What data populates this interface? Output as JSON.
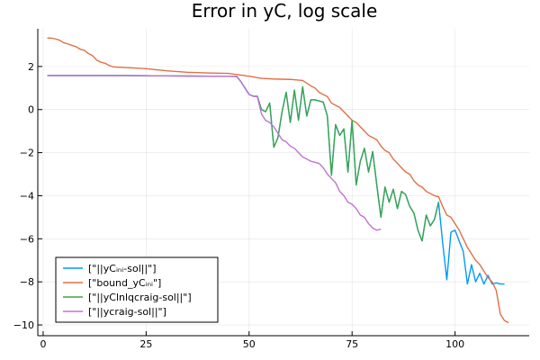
{
  "chart_data": {
    "type": "line",
    "title": "Error in yC, log scale",
    "xlabel": "",
    "ylabel": "",
    "xlim": [
      -1.3,
      118
    ],
    "ylim": [
      -10.5,
      3.75
    ],
    "x_ticks": [
      0,
      25,
      50,
      75,
      100
    ],
    "y_ticks": [
      2,
      0,
      -2,
      -4,
      -6,
      -8,
      -10
    ],
    "x_tick_labels": [
      "0",
      "25",
      "50",
      "75",
      "100"
    ],
    "y_tick_labels": [
      "2",
      "0",
      "−2",
      "−4",
      "−6",
      "−8",
      "−10"
    ],
    "grid": true,
    "legend_position": "bottom-left",
    "series": [
      {
        "name": "[\"||yCᵢₙᵢ-sol||\"]",
        "color": "#009AFA",
        "points": [
          [
            1,
            1.58
          ],
          [
            20,
            1.58
          ],
          [
            40,
            1.55
          ],
          [
            47,
            1.54
          ],
          [
            48,
            1.3
          ],
          [
            50,
            0.7
          ],
          [
            51,
            0.62
          ],
          [
            52,
            0.62
          ],
          [
            53,
            0.0
          ],
          [
            54,
            -0.1
          ],
          [
            55,
            0.3
          ],
          [
            56,
            -1.75
          ],
          [
            57,
            -1.3
          ],
          [
            58,
            -0.1
          ],
          [
            59,
            0.8
          ],
          [
            60,
            -0.6
          ],
          [
            61,
            0.9
          ],
          [
            62,
            -0.5
          ],
          [
            63,
            1.05
          ],
          [
            64,
            -0.3
          ],
          [
            65,
            0.45
          ],
          [
            66,
            0.45
          ],
          [
            67,
            0.4
          ],
          [
            68,
            0.35
          ],
          [
            69,
            -0.3
          ],
          [
            70,
            -3.05
          ],
          [
            71,
            -0.7
          ],
          [
            72,
            -1.2
          ],
          [
            73,
            -0.9
          ],
          [
            74,
            -2.9
          ],
          [
            75,
            -0.5
          ],
          [
            76,
            -3.5
          ],
          [
            77,
            -2.4
          ],
          [
            78,
            -1.8
          ],
          [
            79,
            -2.9
          ],
          [
            80,
            -1.95
          ],
          [
            81,
            -3.5
          ],
          [
            82,
            -5.0
          ],
          [
            83,
            -3.6
          ],
          [
            84,
            -4.3
          ],
          [
            85,
            -3.7
          ],
          [
            86,
            -4.6
          ],
          [
            87,
            -3.8
          ],
          [
            88,
            -3.95
          ],
          [
            89,
            -4.5
          ],
          [
            90,
            -4.8
          ],
          [
            91,
            -5.6
          ],
          [
            92,
            -6.1
          ],
          [
            93,
            -4.9
          ],
          [
            94,
            -5.4
          ],
          [
            95,
            -5.1
          ],
          [
            96,
            -4.3
          ],
          [
            97,
            -6.2
          ],
          [
            98,
            -7.9
          ],
          [
            99,
            -5.7
          ],
          [
            100,
            -5.6
          ],
          [
            101,
            -6.1
          ],
          [
            102,
            -6.6
          ],
          [
            103,
            -8.1
          ],
          [
            104,
            -7.2
          ],
          [
            105,
            -8.0
          ],
          [
            106,
            -7.6
          ],
          [
            107,
            -8.1
          ],
          [
            108,
            -7.7
          ],
          [
            109,
            -8.1
          ],
          [
            110,
            -8.05
          ],
          [
            111,
            -8.1
          ],
          [
            112,
            -8.1
          ]
        ]
      },
      {
        "name": "[\"bound_yCᵢₙᵢ\"]",
        "color": "#E26F46",
        "points": [
          [
            1,
            3.32
          ],
          [
            2,
            3.32
          ],
          [
            3,
            3.28
          ],
          [
            4,
            3.22
          ],
          [
            5,
            3.1
          ],
          [
            6,
            3.05
          ],
          [
            7,
            2.98
          ],
          [
            8,
            2.92
          ],
          [
            9,
            2.8
          ],
          [
            10,
            2.75
          ],
          [
            11,
            2.6
          ],
          [
            12,
            2.5
          ],
          [
            13,
            2.3
          ],
          [
            14,
            2.2
          ],
          [
            15,
            2.15
          ],
          [
            16,
            2.05
          ],
          [
            17,
            1.98
          ],
          [
            20,
            1.95
          ],
          [
            25,
            1.9
          ],
          [
            30,
            1.8
          ],
          [
            35,
            1.73
          ],
          [
            40,
            1.7
          ],
          [
            45,
            1.68
          ],
          [
            48,
            1.6
          ],
          [
            50,
            1.55
          ],
          [
            53,
            1.45
          ],
          [
            56,
            1.42
          ],
          [
            60,
            1.4
          ],
          [
            63,
            1.35
          ],
          [
            65,
            1.1
          ],
          [
            66,
            1.0
          ],
          [
            67,
            0.8
          ],
          [
            68,
            0.7
          ],
          [
            69,
            0.6
          ],
          [
            70,
            0.3
          ],
          [
            71,
            0.2
          ],
          [
            72,
            0.1
          ],
          [
            73,
            -0.1
          ],
          [
            74,
            -0.3
          ],
          [
            75,
            -0.5
          ],
          [
            76,
            -0.6
          ],
          [
            77,
            -0.8
          ],
          [
            78,
            -1.0
          ],
          [
            79,
            -1.2
          ],
          [
            80,
            -1.3
          ],
          [
            81,
            -1.4
          ],
          [
            82,
            -1.7
          ],
          [
            83,
            -1.9
          ],
          [
            84,
            -2.0
          ],
          [
            85,
            -2.3
          ],
          [
            86,
            -2.5
          ],
          [
            87,
            -2.7
          ],
          [
            88,
            -2.9
          ],
          [
            89,
            -3.0
          ],
          [
            90,
            -3.3
          ],
          [
            91,
            -3.5
          ],
          [
            92,
            -3.6
          ],
          [
            93,
            -3.8
          ],
          [
            94,
            -3.9
          ],
          [
            95,
            -4.0
          ],
          [
            96,
            -4.05
          ],
          [
            97,
            -4.5
          ],
          [
            98,
            -4.9
          ],
          [
            99,
            -5.0
          ],
          [
            100,
            -5.3
          ],
          [
            101,
            -5.6
          ],
          [
            102,
            -6.0
          ],
          [
            103,
            -6.4
          ],
          [
            104,
            -6.7
          ],
          [
            105,
            -7.0
          ],
          [
            106,
            -7.2
          ],
          [
            107,
            -7.5
          ],
          [
            108,
            -7.8
          ],
          [
            109,
            -8.0
          ],
          [
            110,
            -8.4
          ],
          [
            111,
            -9.5
          ],
          [
            112,
            -9.8
          ],
          [
            113,
            -9.9
          ]
        ]
      },
      {
        "name": "[\"||yClnlqcraig-sol||\"]",
        "color": "#3EA44E",
        "points": [
          [
            1,
            1.58
          ],
          [
            20,
            1.58
          ],
          [
            40,
            1.55
          ],
          [
            47,
            1.54
          ],
          [
            48,
            1.3
          ],
          [
            50,
            0.7
          ],
          [
            51,
            0.62
          ],
          [
            52,
            0.62
          ],
          [
            53,
            0.0
          ],
          [
            54,
            -0.1
          ],
          [
            55,
            0.3
          ],
          [
            56,
            -1.75
          ],
          [
            57,
            -1.3
          ],
          [
            58,
            -0.1
          ],
          [
            59,
            0.8
          ],
          [
            60,
            -0.6
          ],
          [
            61,
            0.9
          ],
          [
            62,
            -0.5
          ],
          [
            63,
            1.05
          ],
          [
            64,
            -0.3
          ],
          [
            65,
            0.45
          ],
          [
            66,
            0.45
          ],
          [
            67,
            0.4
          ],
          [
            68,
            0.35
          ],
          [
            69,
            -0.3
          ],
          [
            70,
            -3.05
          ],
          [
            71,
            -0.7
          ],
          [
            72,
            -1.2
          ],
          [
            73,
            -0.9
          ],
          [
            74,
            -2.9
          ],
          [
            75,
            -0.5
          ],
          [
            76,
            -3.5
          ],
          [
            77,
            -2.4
          ],
          [
            78,
            -1.8
          ],
          [
            79,
            -2.9
          ],
          [
            80,
            -1.95
          ],
          [
            81,
            -3.5
          ],
          [
            82,
            -5.0
          ],
          [
            83,
            -3.6
          ],
          [
            84,
            -4.3
          ],
          [
            85,
            -3.7
          ],
          [
            86,
            -4.6
          ],
          [
            87,
            -3.8
          ],
          [
            88,
            -3.95
          ],
          [
            89,
            -4.5
          ],
          [
            90,
            -4.8
          ],
          [
            91,
            -5.6
          ],
          [
            92,
            -6.1
          ],
          [
            93,
            -4.9
          ],
          [
            94,
            -5.4
          ],
          [
            95,
            -5.1
          ],
          [
            96,
            -4.3
          ]
        ]
      },
      {
        "name": "[\"||ycraig-sol||\"]",
        "color": "#C271D2",
        "points": [
          [
            1,
            1.58
          ],
          [
            20,
            1.58
          ],
          [
            40,
            1.55
          ],
          [
            47,
            1.54
          ],
          [
            48,
            1.3
          ],
          [
            50,
            0.7
          ],
          [
            51,
            0.62
          ],
          [
            52,
            0.6
          ],
          [
            53,
            -0.2
          ],
          [
            54,
            -0.5
          ],
          [
            55,
            -0.6
          ],
          [
            56,
            -0.8
          ],
          [
            57,
            -1.1
          ],
          [
            58,
            -1.4
          ],
          [
            59,
            -1.5
          ],
          [
            60,
            -1.7
          ],
          [
            61,
            -1.8
          ],
          [
            62,
            -2.0
          ],
          [
            63,
            -2.2
          ],
          [
            64,
            -2.3
          ],
          [
            65,
            -2.4
          ],
          [
            66,
            -2.45
          ],
          [
            67,
            -2.5
          ],
          [
            68,
            -2.7
          ],
          [
            69,
            -3.0
          ],
          [
            70,
            -3.2
          ],
          [
            71,
            -3.4
          ],
          [
            72,
            -3.8
          ],
          [
            73,
            -4.0
          ],
          [
            74,
            -4.3
          ],
          [
            75,
            -4.4
          ],
          [
            76,
            -4.6
          ],
          [
            77,
            -4.9
          ],
          [
            78,
            -5.0
          ],
          [
            79,
            -5.3
          ],
          [
            80,
            -5.5
          ],
          [
            81,
            -5.6
          ],
          [
            82,
            -5.55
          ]
        ]
      }
    ]
  }
}
